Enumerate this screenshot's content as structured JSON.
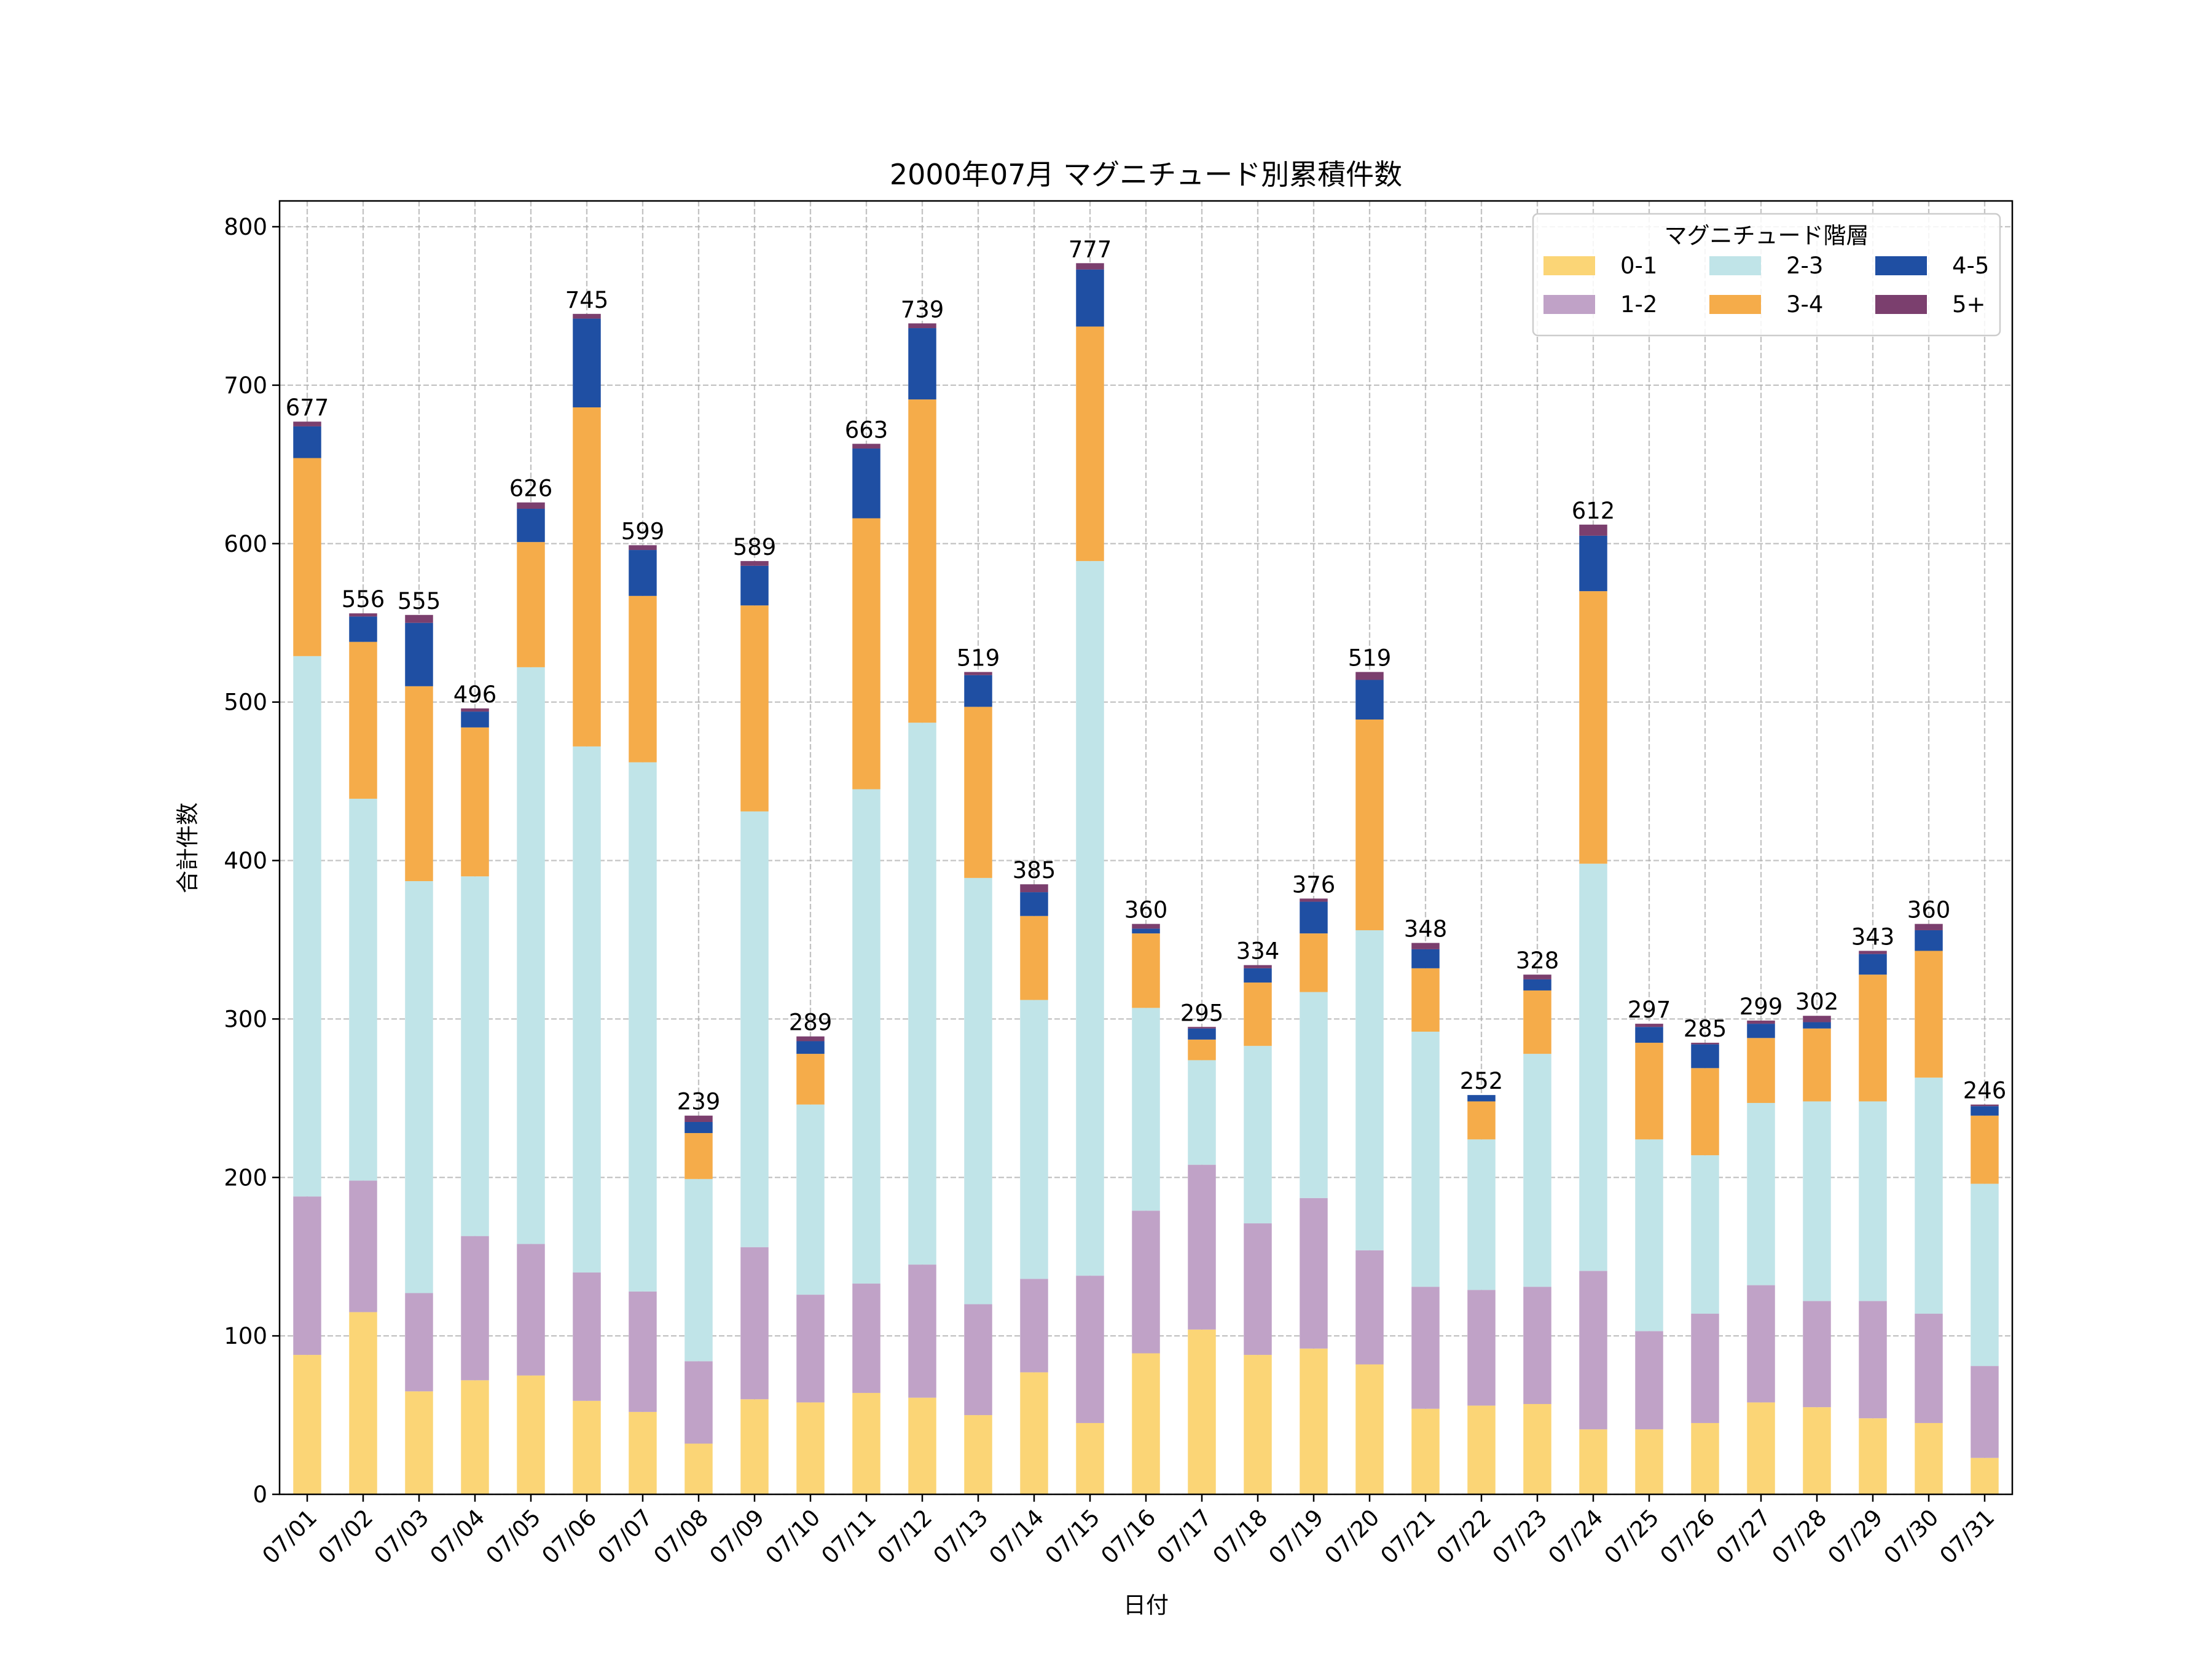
{
  "chart_data": {
    "type": "bar",
    "stacked": true,
    "title": "2000年07月 マグニチュード別累積件数",
    "xlabel": "日付",
    "ylabel": "合計件数",
    "ylim": [
      0,
      815
    ],
    "yticks": [
      0,
      100,
      200,
      300,
      400,
      500,
      600,
      700,
      800
    ],
    "grid": true,
    "legend": {
      "title": "マグニチュード階層",
      "placement": "top-right",
      "columns": 3
    },
    "categories": [
      "07/01",
      "07/02",
      "07/03",
      "07/04",
      "07/05",
      "07/06",
      "07/07",
      "07/08",
      "07/09",
      "07/10",
      "07/11",
      "07/12",
      "07/13",
      "07/14",
      "07/15",
      "07/16",
      "07/17",
      "07/18",
      "07/19",
      "07/20",
      "07/21",
      "07/22",
      "07/23",
      "07/24",
      "07/25",
      "07/26",
      "07/27",
      "07/28",
      "07/29",
      "07/30",
      "07/31"
    ],
    "series": [
      {
        "name": "0-1",
        "color": "#FBD576",
        "values": [
          88,
          115,
          65,
          72,
          75,
          59,
          52,
          32,
          60,
          58,
          64,
          61,
          50,
          77,
          45,
          89,
          104,
          88,
          92,
          82,
          54,
          56,
          57,
          41,
          41,
          45,
          58,
          55,
          48,
          45,
          23
        ]
      },
      {
        "name": "1-2",
        "color": "#C0A2C7",
        "values": [
          100,
          83,
          62,
          91,
          83,
          81,
          76,
          52,
          96,
          68,
          69,
          84,
          70,
          59,
          93,
          90,
          104,
          83,
          95,
          72,
          77,
          73,
          74,
          100,
          62,
          69,
          74,
          67,
          74,
          69,
          58
        ]
      },
      {
        "name": "2-3",
        "color": "#C0E4E8",
        "values": [
          341,
          241,
          260,
          227,
          364,
          332,
          334,
          115,
          275,
          120,
          312,
          342,
          269,
          176,
          451,
          128,
          66,
          112,
          130,
          202,
          161,
          95,
          147,
          257,
          121,
          100,
          115,
          126,
          126,
          149,
          115
        ]
      },
      {
        "name": "3-4",
        "color": "#F5AC4A",
        "values": [
          125,
          99,
          123,
          94,
          79,
          214,
          105,
          29,
          130,
          32,
          171,
          204,
          108,
          53,
          148,
          47,
          13,
          40,
          37,
          133,
          40,
          24,
          40,
          172,
          61,
          55,
          41,
          46,
          80,
          80,
          43
        ]
      },
      {
        "name": "4-5",
        "color": "#1F4FA3",
        "values": [
          20,
          16,
          40,
          10,
          21,
          56,
          29,
          7,
          25,
          8,
          44,
          45,
          20,
          15,
          36,
          3,
          7,
          9,
          20,
          25,
          12,
          4,
          7,
          35,
          10,
          15,
          9,
          4,
          13,
          13,
          6
        ]
      },
      {
        "name": "5+",
        "color": "#7B3F6E",
        "values": [
          3,
          2,
          5,
          2,
          4,
          3,
          3,
          4,
          3,
          3,
          3,
          3,
          2,
          5,
          4,
          3,
          1,
          2,
          2,
          5,
          4,
          0,
          3,
          7,
          2,
          1,
          2,
          4,
          2,
          4,
          1
        ]
      }
    ],
    "totals": [
      677,
      556,
      555,
      496,
      626,
      745,
      599,
      239,
      589,
      289,
      663,
      739,
      519,
      385,
      777,
      360,
      295,
      334,
      376,
      519,
      348,
      252,
      328,
      612,
      297,
      285,
      299,
      302,
      343,
      360,
      246
    ]
  }
}
